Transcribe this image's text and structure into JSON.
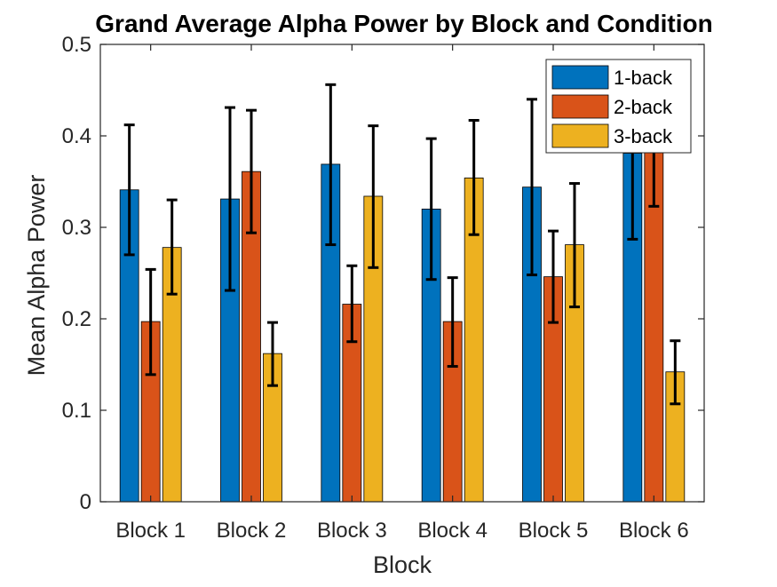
{
  "chart_data": {
    "type": "bar",
    "title": "Grand Average Alpha Power by Block and Condition",
    "xlabel": "Block",
    "ylabel": "Mean Alpha Power",
    "categories": [
      "Block 1",
      "Block 2",
      "Block 3",
      "Block 4",
      "Block 5",
      "Block 6"
    ],
    "ylim": [
      0,
      0.5
    ],
    "yticks": [
      0,
      0.1,
      0.2,
      0.3,
      0.4,
      0.5
    ],
    "ytick_labels": [
      "0",
      "0.1",
      "0.2",
      "0.3",
      "0.4",
      "0.5"
    ],
    "grid": false,
    "legend_position": "top-right",
    "series": [
      {
        "name": "1-back",
        "color": "#0072BD",
        "values": [
          0.341,
          0.331,
          0.369,
          0.32,
          0.344,
          0.381
        ],
        "error_low": [
          0.27,
          0.231,
          0.281,
          0.243,
          0.248,
          0.287
        ],
        "error_high": [
          0.412,
          0.431,
          0.456,
          0.397,
          0.44,
          0.475
        ]
      },
      {
        "name": "2-back",
        "color": "#D95319",
        "values": [
          0.197,
          0.361,
          0.216,
          0.197,
          0.246,
          0.394
        ],
        "error_low": [
          0.139,
          0.294,
          0.175,
          0.148,
          0.196,
          0.323
        ],
        "error_high": [
          0.254,
          0.428,
          0.258,
          0.245,
          0.296,
          0.465
        ]
      },
      {
        "name": "3-back",
        "color": "#EDB120",
        "values": [
          0.278,
          0.162,
          0.334,
          0.354,
          0.281,
          0.142
        ],
        "error_low": [
          0.227,
          0.127,
          0.256,
          0.292,
          0.213,
          0.107
        ],
        "error_high": [
          0.33,
          0.196,
          0.411,
          0.417,
          0.348,
          0.176
        ]
      }
    ]
  }
}
